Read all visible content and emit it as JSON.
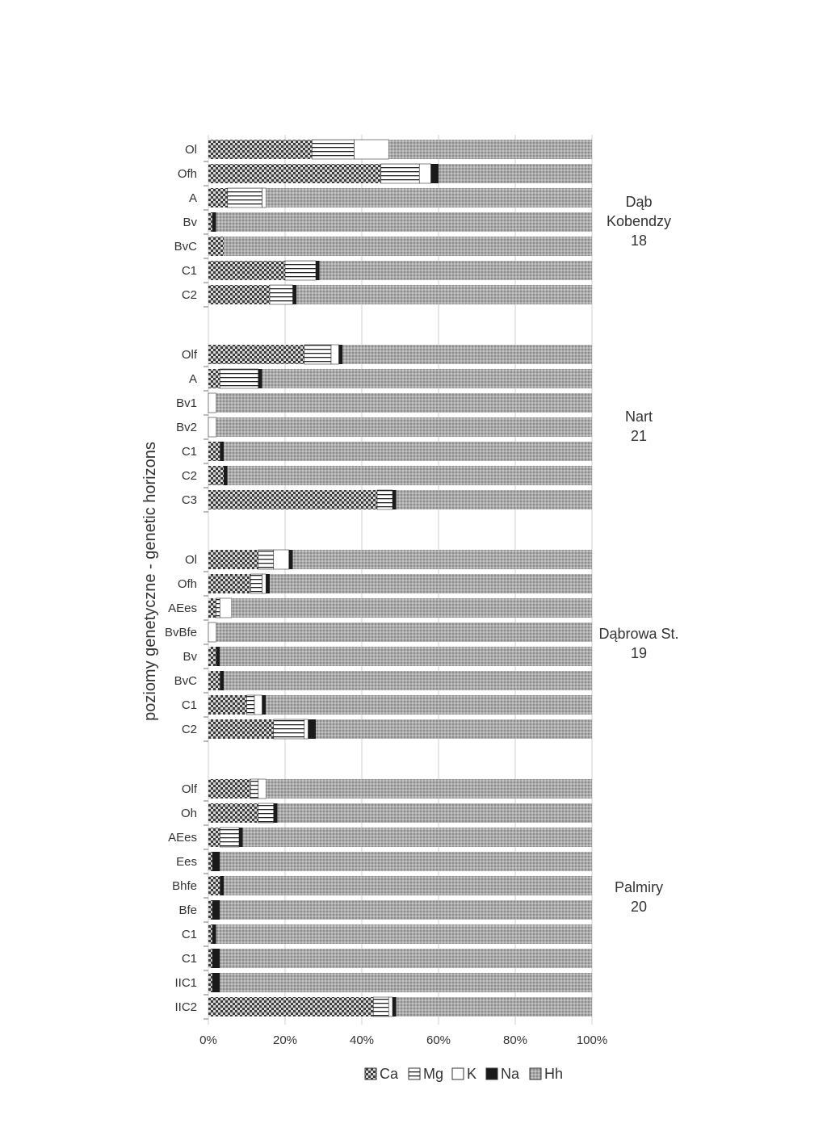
{
  "chart_data": {
    "type": "bar",
    "stacked": "percent",
    "orientation": "horizontal",
    "ylabel": "poziomy genetyczne - genetic horizons",
    "x_ticks": [
      "0%",
      "20%",
      "40%",
      "60%",
      "80%",
      "100%"
    ],
    "xlim": [
      0,
      100
    ],
    "legend_position": "bottom",
    "series": [
      {
        "name": "Ca",
        "color": "#6a6a6a"
      },
      {
        "name": "Mg",
        "color": "#ffffff"
      },
      {
        "name": "K",
        "color": "#ffffff"
      },
      {
        "name": "Na",
        "color": "#1a1a1a"
      },
      {
        "name": "Hh",
        "color": "#9e9e9e"
      }
    ],
    "groups": [
      {
        "label_lines": [
          "Dąb",
          "Kobendzy",
          "18"
        ],
        "rows": [
          {
            "label": "Ol",
            "values": [
              27,
              11,
              9,
              0,
              53
            ]
          },
          {
            "label": "Ofh",
            "values": [
              45,
              10,
              3,
              2,
              40
            ]
          },
          {
            "label": "A",
            "values": [
              5,
              9,
              1,
              0,
              85
            ]
          },
          {
            "label": "Bv",
            "values": [
              1,
              0,
              0,
              1,
              98
            ]
          },
          {
            "label": "BvC",
            "values": [
              4,
              0,
              0,
              0,
              96
            ]
          },
          {
            "label": "C1",
            "values": [
              20,
              8,
              0,
              1,
              71
            ]
          },
          {
            "label": "C2",
            "values": [
              16,
              6,
              0,
              1,
              77
            ]
          }
        ]
      },
      {
        "label_lines": [
          "Nart",
          "21"
        ],
        "rows": [
          {
            "label": "Olf",
            "values": [
              25,
              7,
              2,
              1,
              65
            ]
          },
          {
            "label": "A",
            "values": [
              3,
              10,
              0,
              1,
              86
            ]
          },
          {
            "label": "Bv1",
            "values": [
              0,
              0,
              2,
              0,
              98
            ]
          },
          {
            "label": "Bv2",
            "values": [
              0,
              0,
              2,
              0,
              98
            ]
          },
          {
            "label": "C1",
            "values": [
              3,
              0,
              0,
              1,
              96
            ]
          },
          {
            "label": "C2",
            "values": [
              4,
              0,
              0,
              1,
              95
            ]
          },
          {
            "label": "C3",
            "values": [
              44,
              4,
              0,
              1,
              51
            ]
          }
        ]
      },
      {
        "label_lines": [
          "Dąbrowa St.",
          "19"
        ],
        "rows": [
          {
            "label": "Ol",
            "values": [
              13,
              4,
              4,
              1,
              78
            ]
          },
          {
            "label": "Ofh",
            "values": [
              11,
              3,
              1,
              1,
              84
            ]
          },
          {
            "label": "AEes",
            "values": [
              2,
              1,
              3,
              0,
              94
            ]
          },
          {
            "label": "BvBfe",
            "values": [
              0,
              0,
              2,
              0,
              98
            ]
          },
          {
            "label": "Bv",
            "values": [
              2,
              0,
              0,
              1,
              97
            ]
          },
          {
            "label": "BvC",
            "values": [
              3,
              0,
              0,
              1,
              96
            ]
          },
          {
            "label": "C1",
            "values": [
              10,
              2,
              2,
              1,
              85
            ]
          },
          {
            "label": "C2",
            "values": [
              17,
              8,
              1,
              2,
              72
            ]
          }
        ]
      },
      {
        "label_lines": [
          "Palmiry",
          "20"
        ],
        "rows": [
          {
            "label": "Olf",
            "values": [
              11,
              2,
              2,
              0,
              85
            ]
          },
          {
            "label": "Oh",
            "values": [
              13,
              4,
              0,
              1,
              82
            ]
          },
          {
            "label": "AEes",
            "values": [
              3,
              5,
              0,
              1,
              91
            ]
          },
          {
            "label": "Ees",
            "values": [
              1,
              0,
              0,
              2,
              97
            ]
          },
          {
            "label": "Bhfe",
            "values": [
              3,
              0,
              0,
              1,
              96
            ]
          },
          {
            "label": "Bfe",
            "values": [
              1,
              0,
              0,
              2,
              97
            ]
          },
          {
            "label": "C1",
            "values": [
              1,
              0,
              0,
              1,
              98
            ]
          },
          {
            "label": "C1",
            "values": [
              1,
              0,
              0,
              2,
              97
            ]
          },
          {
            "label": "IIC1",
            "values": [
              1,
              0,
              0,
              2,
              97
            ]
          },
          {
            "label": "IIC2",
            "values": [
              43,
              4,
              1,
              1,
              51
            ]
          }
        ]
      }
    ]
  }
}
